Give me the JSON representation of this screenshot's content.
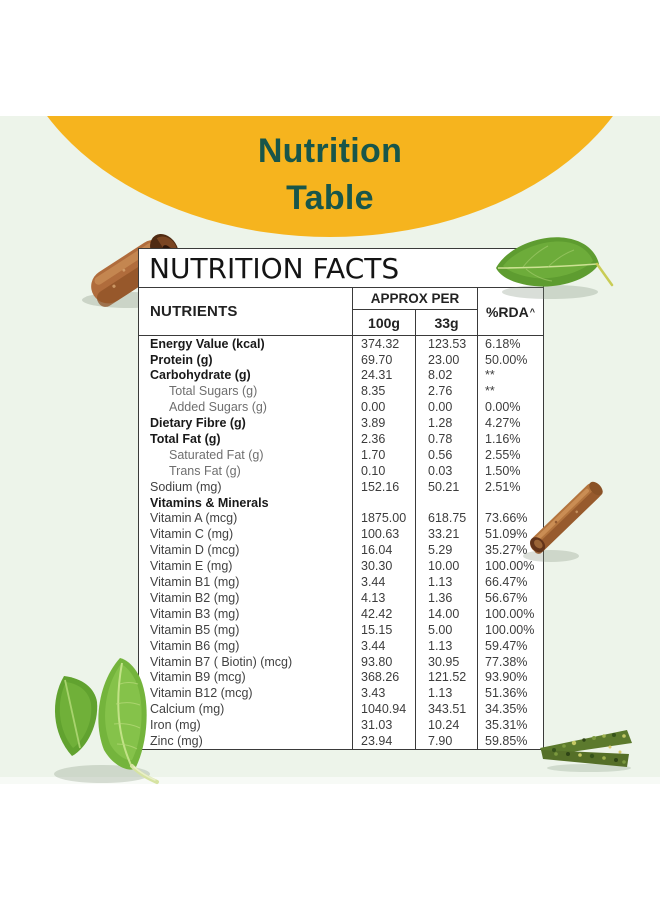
{
  "banner": {
    "line1": "Nutrition",
    "line2": "Table"
  },
  "colors": {
    "banner_bg": "#F6B41E",
    "banner_text": "#18564A",
    "page_bg": "#EDF4EA",
    "table_border": "#3A3A3A"
  },
  "table": {
    "title": "NUTRITION FACTS",
    "headers": {
      "nutrients": "NUTRIENTS",
      "approx": "APPROX PER",
      "per100": "100g",
      "per33": "33g",
      "rda": "%RDA",
      "rda_sup": "^"
    },
    "rows": [
      {
        "label": "Energy Value (kcal)",
        "v100": "374.32",
        "v33": "123.53",
        "rda": "6.18%",
        "style": "bold"
      },
      {
        "label": "Protein (g)",
        "v100": "69.70",
        "v33": "23.00",
        "rda": "50.00%",
        "style": "bold"
      },
      {
        "label": "Carbohydrate (g)",
        "v100": "24.31",
        "v33": "8.02",
        "rda": "**",
        "style": "bold"
      },
      {
        "label": "Total Sugars (g)",
        "v100": "8.35",
        "v33": "2.76",
        "rda": "**",
        "style": "sub"
      },
      {
        "label": "Added Sugars (g)",
        "v100": "0.00",
        "v33": "0.00",
        "rda": "0.00%",
        "style": "sub"
      },
      {
        "label": "Dietary Fibre (g)",
        "v100": "3.89",
        "v33": "1.28",
        "rda": "4.27%",
        "style": "bold"
      },
      {
        "label": "Total Fat (g)",
        "v100": "2.36",
        "v33": "0.78",
        "rda": "1.16%",
        "style": "bold"
      },
      {
        "label": "Saturated Fat (g)",
        "v100": "1.70",
        "v33": "0.56",
        "rda": "2.55%",
        "style": "sub"
      },
      {
        "label": "Trans Fat (g)",
        "v100": "0.10",
        "v33": "0.03",
        "rda": "1.50%",
        "style": "sub"
      },
      {
        "label": "Sodium (mg)",
        "v100": "152.16",
        "v33": "50.21",
        "rda": "2.51%",
        "style": "normal"
      },
      {
        "label": "Vitamins & Minerals",
        "v100": "",
        "v33": "",
        "rda": "",
        "style": "section"
      },
      {
        "label": "Vitamin A (mcg)",
        "v100": "1875.00",
        "v33": "618.75",
        "rda": "73.66%",
        "style": "normal"
      },
      {
        "label": "Vitamin C (mg)",
        "v100": "100.63",
        "v33": "33.21",
        "rda": "51.09%",
        "style": "normal"
      },
      {
        "label": "Vitamin D (mcg)",
        "v100": "16.04",
        "v33": "5.29",
        "rda": "35.27%",
        "style": "normal"
      },
      {
        "label": "Vitamin E (mg)",
        "v100": "30.30",
        "v33": "10.00",
        "rda": "100.00%",
        "style": "normal"
      },
      {
        "label": "Vitamin B1 (mg)",
        "v100": "3.44",
        "v33": "1.13",
        "rda": "66.47%",
        "style": "normal"
      },
      {
        "label": "Vitamin B2 (mg)",
        "v100": "4.13",
        "v33": "1.36",
        "rda": "56.67%",
        "style": "normal"
      },
      {
        "label": "Vitamin B3 (mg)",
        "v100": "42.42",
        "v33": "14.00",
        "rda": "100.00%",
        "style": "normal"
      },
      {
        "label": "Vitamin B5 (mg)",
        "v100": "15.15",
        "v33": "5.00",
        "rda": "100.00%",
        "style": "normal"
      },
      {
        "label": "Vitamin B6 (mg)",
        "v100": "3.44",
        "v33": "1.13",
        "rda": "59.47%",
        "style": "normal"
      },
      {
        "label": "Vitamin B7 ( Biotin) (mcg)",
        "v100": "93.80",
        "v33": "30.95",
        "rda": "77.38%",
        "style": "normal"
      },
      {
        "label": "Vitamin B9 (mcg)",
        "v100": "368.26",
        "v33": "121.52",
        "rda": "93.90%",
        "style": "normal"
      },
      {
        "label": "Vitamin B12 (mcg)",
        "v100": "3.43",
        "v33": "1.13",
        "rda": "51.36%",
        "style": "normal"
      },
      {
        "label": "Calcium (mg)",
        "v100": "1040.94",
        "v33": "343.51",
        "rda": "34.35%",
        "style": "normal"
      },
      {
        "label": "Iron (mg)",
        "v100": "31.03",
        "v33": "10.24",
        "rda": "35.31%",
        "style": "normal"
      },
      {
        "label": "Zinc (mg)",
        "v100": "23.94",
        "v33": "7.90",
        "rda": "59.85%",
        "style": "normal"
      }
    ]
  },
  "decorations": {
    "top_left": "cinnamon-roll",
    "top_right": "bay-leaf",
    "right": "cinnamon-stick",
    "bottom_left": "tulsi-leaves",
    "bottom_right": "herb-sticks"
  }
}
